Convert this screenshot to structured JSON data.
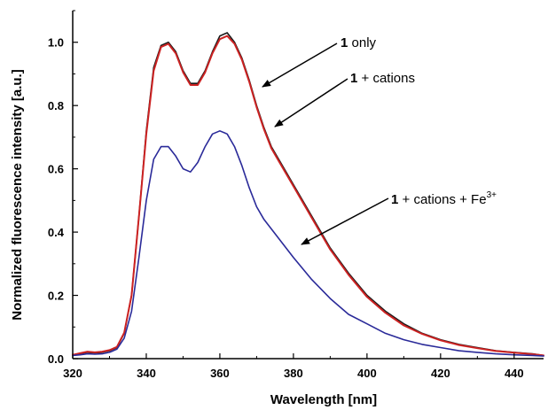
{
  "chart_data": {
    "type": "line",
    "title": "",
    "xlabel": "Wavelength [nm]",
    "ylabel": "Normalized fluorescence intensity [a.u.]",
    "xlim": [
      320,
      448
    ],
    "ylim": [
      0,
      1.1
    ],
    "xticks": [
      320,
      340,
      360,
      380,
      400,
      420,
      440
    ],
    "yticks": [
      0.0,
      0.2,
      0.4,
      0.6,
      0.8,
      1.0
    ],
    "xtick_labels": [
      "320",
      "340",
      "360",
      "380",
      "400",
      "420",
      "440"
    ],
    "ytick_labels": [
      "0.0",
      "0.2",
      "0.4",
      "0.6",
      "0.8",
      "1.0"
    ],
    "grid": false,
    "legend": "none",
    "x": [
      320,
      322,
      324,
      326,
      328,
      330,
      332,
      334,
      336,
      338,
      340,
      342,
      344,
      346,
      348,
      350,
      352,
      354,
      356,
      358,
      360,
      362,
      364,
      366,
      368,
      370,
      372,
      374,
      376,
      378,
      380,
      385,
      390,
      395,
      400,
      405,
      410,
      415,
      420,
      425,
      430,
      435,
      440,
      445,
      448
    ],
    "series": [
      {
        "color": "#1a1a1a",
        "values": [
          0.01,
          0.015,
          0.02,
          0.018,
          0.02,
          0.025,
          0.035,
          0.08,
          0.2,
          0.45,
          0.72,
          0.92,
          0.99,
          1.0,
          0.97,
          0.91,
          0.87,
          0.87,
          0.91,
          0.97,
          1.02,
          1.03,
          1.0,
          0.95,
          0.88,
          0.8,
          0.73,
          0.67,
          0.63,
          0.59,
          0.55,
          0.45,
          0.35,
          0.27,
          0.2,
          0.15,
          0.11,
          0.08,
          0.06,
          0.045,
          0.035,
          0.025,
          0.02,
          0.015,
          0.01
        ]
      },
      {
        "color": "#cc2222",
        "values": [
          0.012,
          0.017,
          0.022,
          0.02,
          0.022,
          0.027,
          0.037,
          0.082,
          0.2,
          0.45,
          0.71,
          0.91,
          0.985,
          0.995,
          0.965,
          0.905,
          0.865,
          0.865,
          0.905,
          0.965,
          1.01,
          1.02,
          0.995,
          0.945,
          0.875,
          0.795,
          0.725,
          0.665,
          0.625,
          0.585,
          0.545,
          0.445,
          0.345,
          0.265,
          0.195,
          0.145,
          0.105,
          0.078,
          0.058,
          0.043,
          0.033,
          0.024,
          0.019,
          0.014,
          0.01
        ]
      },
      {
        "color": "#2a2a99",
        "values": [
          0.01,
          0.012,
          0.015,
          0.014,
          0.015,
          0.02,
          0.03,
          0.065,
          0.15,
          0.32,
          0.5,
          0.63,
          0.67,
          0.67,
          0.64,
          0.6,
          0.59,
          0.62,
          0.67,
          0.71,
          0.72,
          0.71,
          0.67,
          0.61,
          0.54,
          0.48,
          0.44,
          0.41,
          0.38,
          0.35,
          0.32,
          0.25,
          0.19,
          0.14,
          0.11,
          0.08,
          0.06,
          0.045,
          0.035,
          0.025,
          0.02,
          0.015,
          0.012,
          0.01,
          0.008
        ]
      }
    ],
    "annotations": [
      {
        "number": "1",
        "text": " only",
        "superscript": ""
      },
      {
        "number": "1",
        "text": " + cations",
        "superscript": ""
      },
      {
        "number": "1",
        "text": " + cations + Fe",
        "superscript": "3+"
      }
    ]
  }
}
